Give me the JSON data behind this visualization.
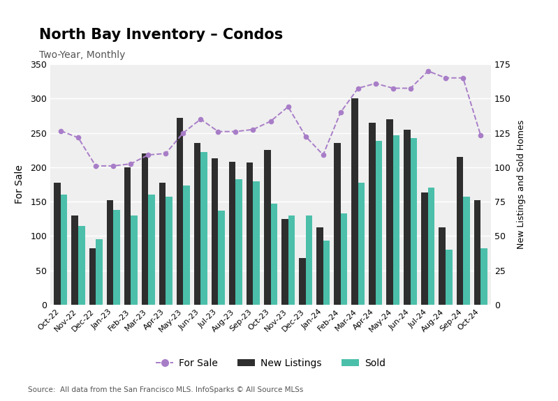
{
  "title": "North Bay Inventory – Condos",
  "subtitle": "Two-Year, Monthly",
  "source": "Source:  All data from the San Francisco MLS. InfoSparks © All Source MLSs",
  "categories": [
    "Oct-22",
    "Nov-22",
    "Dec-22",
    "Jan-23",
    "Feb-23",
    "Mar-23",
    "Apr-23",
    "May-23",
    "Jun-23",
    "Jul-23",
    "Aug-23",
    "Sep-23",
    "Oct-23",
    "Nov-23",
    "Dec-23",
    "Jan-24",
    "Feb-24",
    "Mar-24",
    "Apr-24",
    "May-24",
    "Jun-24",
    "Jul-24",
    "Aug-24",
    "Sep-24",
    "Oct-24"
  ],
  "for_sale": [
    253,
    243,
    202,
    202,
    205,
    218,
    220,
    250,
    270,
    252,
    252,
    255,
    267,
    288,
    245,
    218,
    280,
    315,
    322,
    315,
    315,
    340,
    330,
    330,
    247
  ],
  "new_listings": [
    178,
    130,
    82,
    152,
    200,
    220,
    178,
    272,
    235,
    213,
    208,
    207,
    225,
    125,
    68,
    113,
    235,
    300,
    265,
    270,
    255,
    163,
    113,
    215,
    152
  ],
  "sold": [
    160,
    115,
    95,
    138,
    130,
    160,
    157,
    173,
    222,
    137,
    183,
    180,
    147,
    130,
    130,
    93,
    133,
    178,
    238,
    247,
    242,
    170,
    80,
    157,
    82
  ],
  "for_sale_color": "#a87dc8",
  "new_listings_color": "#2e2e2e",
  "sold_color": "#4bbfaa",
  "left_ylim": [
    0,
    350
  ],
  "right_ylim": [
    0,
    175
  ],
  "left_yticks": [
    0,
    50,
    100,
    150,
    200,
    250,
    300,
    350
  ],
  "right_yticks": [
    0,
    25,
    50,
    75,
    100,
    125,
    150,
    175
  ],
  "ylabel_left": "For Sale",
  "ylabel_right": "New Listings and Sold Homes",
  "background_color": "#ffffff",
  "plot_bg_color": "#efefef",
  "bar_width": 0.38
}
